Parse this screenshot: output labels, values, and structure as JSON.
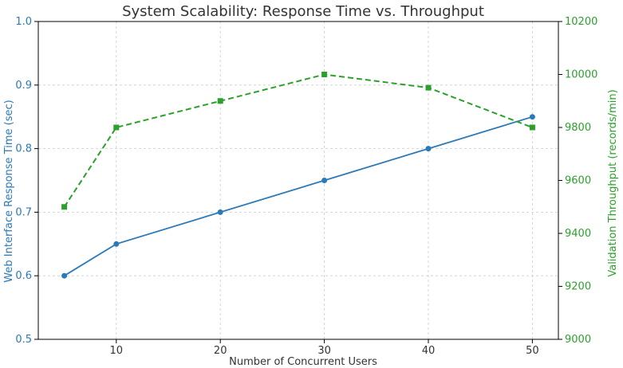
{
  "chart_data": {
    "type": "line",
    "title": "System Scalability: Response Time vs. Throughput",
    "xlabel": "Number of Concurrent Users",
    "ylabel_left": "Web Interface Response Time (sec)",
    "ylabel_right": "Validation Throughput (records/min)",
    "x": [
      5,
      10,
      20,
      30,
      40,
      50
    ],
    "x_ticks": [
      "10",
      "20",
      "30",
      "40",
      "50"
    ],
    "y_left_ticks": [
      "0.5",
      "0.6",
      "0.7",
      "0.8",
      "0.9",
      "1.0"
    ],
    "y_right_ticks": [
      "9000",
      "9200",
      "9400",
      "9600",
      "9800",
      "10000",
      "10200"
    ],
    "xlim": [
      2.5,
      52.5
    ],
    "ylim_left": [
      0.5,
      1.0
    ],
    "ylim_right": [
      9000,
      10200
    ],
    "grid": true,
    "series": [
      {
        "axis": "left",
        "color": "#2a7ab9",
        "style": "solid",
        "marker": "circle",
        "values": [
          0.6,
          0.65,
          0.7,
          0.75,
          0.8,
          0.85
        ]
      },
      {
        "axis": "right",
        "color": "#2ca02c",
        "style": "dashed",
        "marker": "square",
        "values": [
          9500,
          9800,
          9900,
          10000,
          9950,
          9800
        ]
      }
    ],
    "colors": {
      "left_axis": "#2a7ab9",
      "right_axis": "#2ca02c",
      "frame": "#000000",
      "grid": "#cccccc"
    }
  }
}
